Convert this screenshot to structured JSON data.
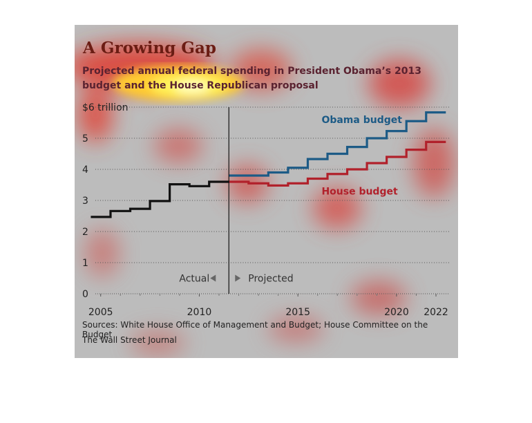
{
  "colors": {
    "obama": "#1d5b86",
    "house": "#b1212b",
    "actual": "#111111",
    "title": "#6b1d14"
  },
  "header": {
    "title": "A Growing Gap",
    "subtitle": "Projected annual federal spending in President Obama’s 2013 budget and the House Republican proposal"
  },
  "footer": {
    "source": "Sources: White House Office of Management and Budget; House Committee on the Budget",
    "credit": "The Wall Street Journal"
  },
  "chart_data": {
    "type": "line",
    "step": true,
    "grid": "dotted horizontal",
    "xlim": [
      2004.8,
      2022.7
    ],
    "ylim": [
      0,
      6
    ],
    "xticks": [
      2005,
      2010,
      2015,
      2020,
      2022
    ],
    "xtick_labels": [
      "2005",
      "2010",
      "2015",
      "2020",
      "2022"
    ],
    "yticks": [
      0,
      1,
      2,
      3,
      4,
      5,
      6
    ],
    "ytick_labels": [
      "0",
      "1",
      "2",
      "3",
      "4",
      "5",
      "$6 trillion"
    ],
    "divider_x": 2011.5,
    "annotations": {
      "left": "Actual",
      "right": "Projected"
    },
    "series": [
      {
        "key": "actual",
        "x": [
          2005,
          2006,
          2007,
          2008,
          2009,
          2010,
          2011
        ],
        "values": [
          2.47,
          2.66,
          2.73,
          2.98,
          3.52,
          3.46,
          3.6
        ]
      },
      {
        "key": "obama",
        "name": "Obama budget",
        "x": [
          2012,
          2013,
          2014,
          2015,
          2016,
          2017,
          2018,
          2019,
          2020,
          2021,
          2022
        ],
        "values": [
          3.8,
          3.8,
          3.9,
          4.05,
          4.33,
          4.5,
          4.72,
          5.0,
          5.23,
          5.55,
          5.83
        ]
      },
      {
        "key": "house",
        "name": "House budget",
        "x": [
          2012,
          2013,
          2014,
          2015,
          2016,
          2017,
          2018,
          2019,
          2020,
          2021,
          2022
        ],
        "values": [
          3.6,
          3.55,
          3.48,
          3.55,
          3.7,
          3.85,
          4.0,
          4.2,
          4.4,
          4.63,
          4.88
        ]
      }
    ]
  }
}
